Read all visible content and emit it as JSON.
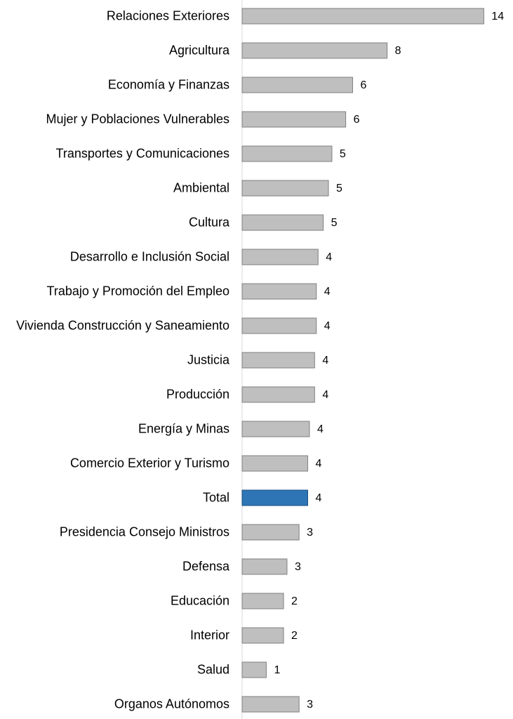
{
  "chart_data": {
    "type": "bar",
    "orientation": "horizontal",
    "categories": [
      "Relaciones Exteriores",
      "Agricultura",
      "Economía y Finanzas",
      "Mujer y Poblaciones Vulnerables",
      "Transportes y Comunicaciones",
      "Ambiental",
      "Cultura",
      "Desarrollo e Inclusión Social",
      "Trabajo y Promoción del Empleo",
      "Vivienda Construcción y Saneamiento",
      "Justicia",
      "Producción",
      "Energía y Minas",
      "Comercio Exterior y Turismo",
      "Total",
      "Presidencia Consejo Ministros",
      "Defensa",
      "Educación",
      "Interior",
      "Salud",
      "Organos Autónomos"
    ],
    "values": [
      14.0,
      8.4,
      6.4,
      6.0,
      5.2,
      5.0,
      4.7,
      4.4,
      4.3,
      4.3,
      4.2,
      4.2,
      3.9,
      3.8,
      3.8,
      3.3,
      2.6,
      2.4,
      2.4,
      1.4,
      3.3
    ],
    "value_labels": [
      "14",
      "8",
      "6",
      "6",
      "5",
      "5",
      "5",
      "4",
      "4",
      "4",
      "4",
      "4",
      "4",
      "4",
      "4",
      "3",
      "3",
      "2",
      "2",
      "1",
      "3"
    ],
    "colors": [
      "#bfbfbf",
      "#bfbfbf",
      "#bfbfbf",
      "#bfbfbf",
      "#bfbfbf",
      "#bfbfbf",
      "#bfbfbf",
      "#bfbfbf",
      "#bfbfbf",
      "#bfbfbf",
      "#bfbfbf",
      "#bfbfbf",
      "#bfbfbf",
      "#bfbfbf",
      "#2e75b6",
      "#bfbfbf",
      "#bfbfbf",
      "#bfbfbf",
      "#bfbfbf",
      "#bfbfbf",
      "#bfbfbf"
    ]
  }
}
